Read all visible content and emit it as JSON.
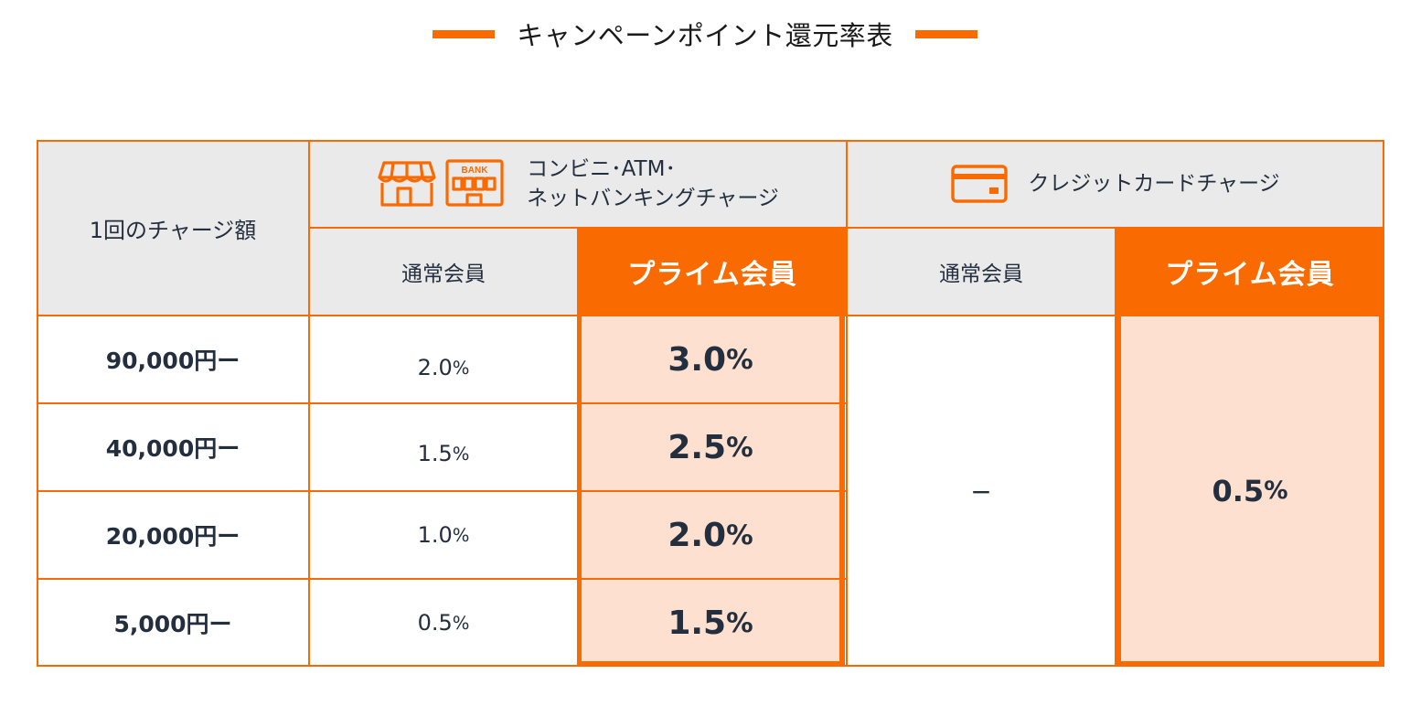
{
  "title": "キャンペーンポイント還元率表",
  "colors": {
    "accent": "#f96b00",
    "header_bg": "#eaeaea",
    "prime_cell_bg": "#fde0cf"
  },
  "table": {
    "row_header_label": "1回のチャージ額",
    "group_store": {
      "label_line1": "コンビニ･ATM･",
      "label_line2": "ネットバンキングチャージ",
      "icons": [
        "store-icon",
        "bank-icon"
      ],
      "bank_icon_text": "BANK",
      "normal_label": "通常会員",
      "prime_label": "プライム会員"
    },
    "group_card": {
      "label": "クレジットカードチャージ",
      "icon": "credit-card-icon",
      "normal_label": "通常会員",
      "prime_label": "プライム会員",
      "normal_value": "−",
      "prime_value_num": "0.5",
      "prime_value_unit": "%"
    },
    "rows": [
      {
        "amount": "90,000円ー",
        "normal_num": "2.0",
        "normal_unit": "%",
        "prime_num": "3.0",
        "prime_unit": "%"
      },
      {
        "amount": "40,000円ー",
        "normal_num": "1.5",
        "normal_unit": "%",
        "prime_num": "2.5",
        "prime_unit": "%"
      },
      {
        "amount": "20,000円ー",
        "normal_num": "1.0",
        "normal_unit": "%",
        "prime_num": "2.0",
        "prime_unit": "%"
      },
      {
        "amount": "5,000円ー",
        "normal_num": "0.5",
        "normal_unit": "%",
        "prime_num": "1.5",
        "prime_unit": "%"
      }
    ]
  }
}
